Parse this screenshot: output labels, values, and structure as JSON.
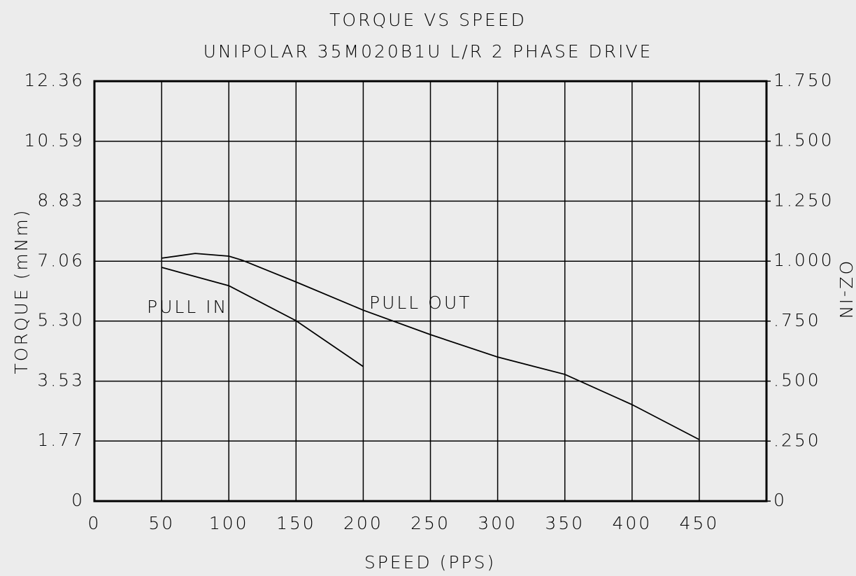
{
  "chart_data": {
    "type": "line",
    "title": "TORQUE VS SPEED",
    "subtitle": "UNIPOLAR 35M020B1U L/R 2 PHASE DRIVE",
    "x_label": "SPEED (PPS)",
    "y_label": "TORQUE (mNm)",
    "y2_label": "OZ-IN",
    "xlim": [
      0,
      500
    ],
    "xticks": [
      0,
      50,
      100,
      150,
      200,
      250,
      300,
      350,
      400,
      450
    ],
    "ylim": [
      0,
      12.36
    ],
    "yticks": [
      0,
      1.77,
      3.53,
      {
        "value": 5.3,
        "label": "5.30"
      },
      7.06,
      8.83,
      10.59,
      12.36
    ],
    "y2lim": [
      0,
      1.75
    ],
    "y2ticks": [
      0,
      {
        "value": 0.25,
        "label": ".250"
      },
      {
        "value": 0.5,
        "label": ".500"
      },
      {
        "value": 0.75,
        "label": ".750"
      },
      {
        "value": 1.0,
        "label": "1.000"
      },
      {
        "value": 1.25,
        "label": "1.250"
      },
      {
        "value": 1.5,
        "label": "1.500"
      },
      {
        "value": 1.75,
        "label": "1.750"
      }
    ],
    "grid": true,
    "series": [
      {
        "name": "PULL IN",
        "color": "#000000",
        "x": [
          50,
          100,
          150,
          200
        ],
        "values": [
          6.88,
          6.34,
          5.31,
          3.96
        ]
      },
      {
        "name": "PULL OUT",
        "color": "#000000",
        "x": [
          50,
          75,
          100,
          110,
          150,
          200,
          250,
          300,
          350,
          400,
          450
        ],
        "values": [
          7.15,
          7.29,
          7.21,
          7.09,
          6.45,
          5.62,
          4.9,
          4.24,
          3.73,
          2.84,
          1.81
        ]
      }
    ]
  }
}
